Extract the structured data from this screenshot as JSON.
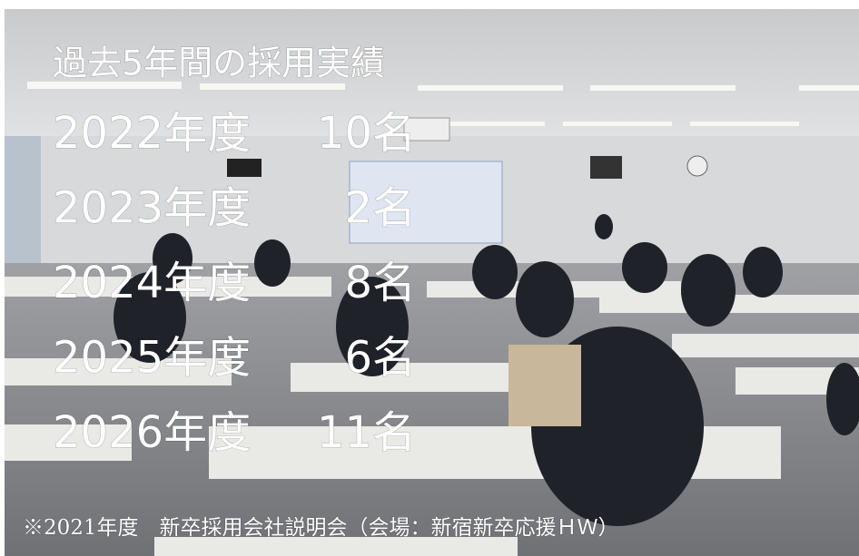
{
  "title": "過去5年間の採用実績",
  "rows": [
    {
      "year": "2022年度",
      "count": "10名"
    },
    {
      "year": "2023年度",
      "count": "2名"
    },
    {
      "year": "2024年度",
      "count": "8名"
    },
    {
      "year": "2025年度",
      "count": "6名"
    },
    {
      "year": "2026年度",
      "count": "11名"
    }
  ],
  "caption": "※2021年度　新卒採用会社説明会（会場：新宿新卒応援ＨＷ）"
}
